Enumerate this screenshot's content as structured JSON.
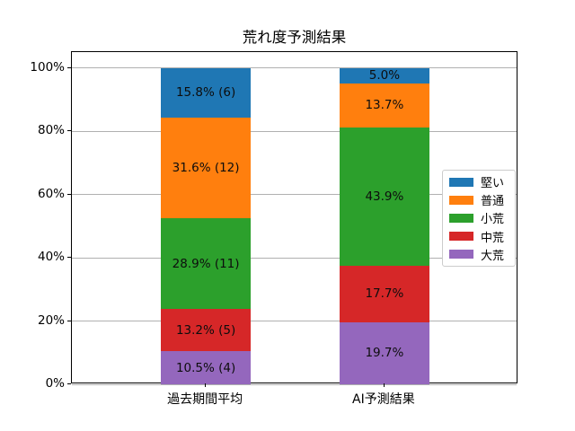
{
  "chart_data": {
    "type": "bar",
    "stacked": true,
    "title": "荒れ度予測結果",
    "categories": [
      "過去期間平均",
      "AI予測結果"
    ],
    "series": [
      {
        "name": "堅い",
        "color": "#1f77b4",
        "values": [
          15.8,
          5.0
        ],
        "labels": [
          "15.8% (6)",
          "5.0%"
        ]
      },
      {
        "name": "普通",
        "color": "#ff7f0e",
        "values": [
          31.6,
          13.7
        ],
        "labels": [
          "31.6% (12)",
          "13.7%"
        ]
      },
      {
        "name": "小荒",
        "color": "#2ca02c",
        "values": [
          28.9,
          43.9
        ],
        "labels": [
          "28.9% (11)",
          "43.9%"
        ]
      },
      {
        "name": "中荒",
        "color": "#d62728",
        "values": [
          13.2,
          17.7
        ],
        "labels": [
          "13.2% (5)",
          "17.7%"
        ]
      },
      {
        "name": "大荒",
        "color": "#9467bd",
        "values": [
          10.5,
          19.7
        ],
        "labels": [
          "10.5% (4)",
          "19.7%"
        ]
      }
    ],
    "stack_note": "series are stacked top-to-bottom in listed order (堅い on top, 大荒 at bottom)",
    "unit": "%",
    "xlabel": "",
    "ylabel": "",
    "ylim": [
      0,
      105
    ],
    "y_ticks": [
      {
        "value": 0,
        "label": "0%"
      },
      {
        "value": 20,
        "label": "20%"
      },
      {
        "value": 40,
        "label": "40%"
      },
      {
        "value": 60,
        "label": "60%"
      },
      {
        "value": 80,
        "label": "80%"
      },
      {
        "value": 100,
        "label": "100%"
      }
    ],
    "grid": true,
    "grid_color": "#b0b0b0",
    "legend_position": "center-right inside plot"
  }
}
